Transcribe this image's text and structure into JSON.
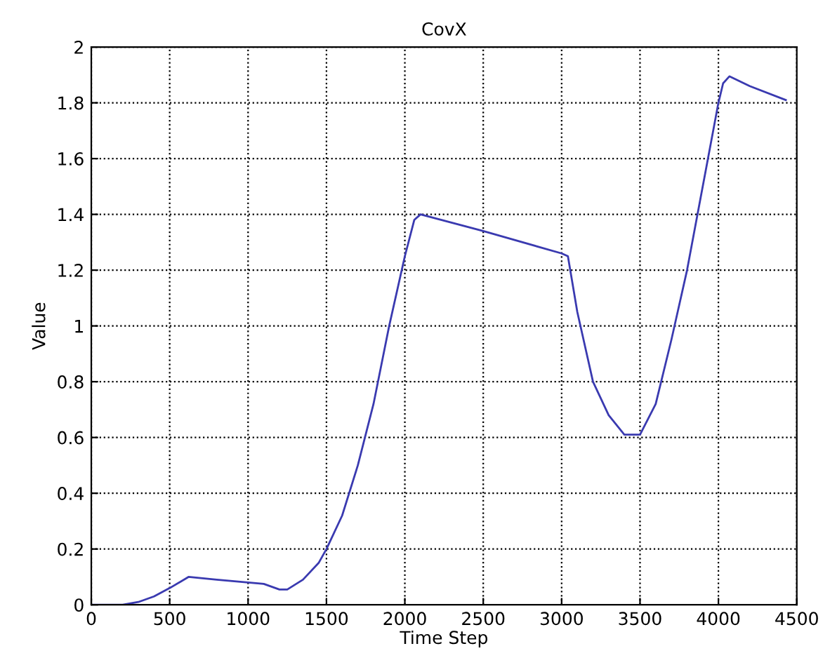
{
  "chart_data": {
    "type": "line",
    "title": "CovX",
    "xlabel": "Time Step",
    "ylabel": "Value",
    "series": [
      {
        "color": "#3a3ab0",
        "x": [
          0,
          200,
          300,
          400,
          500,
          620,
          800,
          1000,
          1100,
          1200,
          1250,
          1350,
          1450,
          1500,
          1600,
          1700,
          1800,
          1900,
          2000,
          2060,
          2100,
          2500,
          3000,
          3040,
          3100,
          3200,
          3300,
          3400,
          3500,
          3600,
          3700,
          3800,
          3900,
          4000,
          4030,
          4070,
          4200,
          4430
        ],
        "values": [
          0,
          0,
          0.01,
          0.03,
          0.06,
          0.1,
          0.09,
          0.08,
          0.075,
          0.055,
          0.055,
          0.09,
          0.15,
          0.2,
          0.32,
          0.5,
          0.72,
          1.0,
          1.25,
          1.38,
          1.4,
          1.34,
          1.26,
          1.25,
          1.05,
          0.8,
          0.68,
          0.61,
          0.61,
          0.72,
          0.95,
          1.2,
          1.5,
          1.8,
          1.87,
          1.895,
          1.86,
          1.81
        ]
      }
    ],
    "xlim": [
      0,
      4500
    ],
    "xticks": [
      0,
      500,
      1000,
      1500,
      2000,
      2500,
      3000,
      3500,
      4000,
      4500
    ],
    "ylim": [
      0,
      2
    ],
    "yticks": [
      0,
      {
        "value": 0.2,
        "label": "0.2"
      },
      {
        "value": 0.4,
        "label": "0.4"
      },
      {
        "value": 0.6,
        "label": "0.6"
      },
      {
        "value": 0.8,
        "label": "0.8"
      },
      1,
      {
        "value": 1.2,
        "label": "1.2"
      },
      {
        "value": 1.4,
        "label": "1.4"
      },
      {
        "value": 1.6,
        "label": "1.6"
      },
      {
        "value": 1.8,
        "label": "1.8"
      },
      2
    ],
    "grid": true,
    "line_style": "solid"
  }
}
